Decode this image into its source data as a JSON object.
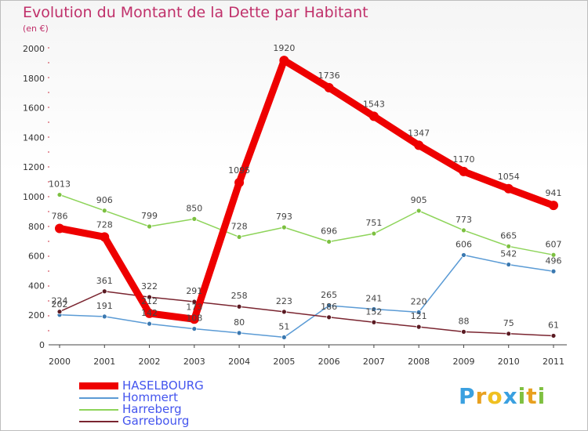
{
  "title": "Evolution du Montant de la Dette par Habitant",
  "subtitle": "(en €)",
  "logo": {
    "text": "Proxiti",
    "letter_colors": [
      "#3aa0e0",
      "#e8a020",
      "#f0c020",
      "#3aa0e0",
      "#7fc040",
      "#e8a020",
      "#7fc040"
    ]
  },
  "chart_data": {
    "type": "line",
    "title": "Evolution du Montant de la Dette par Habitant",
    "subtitle": "(en €)",
    "x": [
      "2000",
      "2001",
      "2002",
      "2003",
      "2004",
      "2005",
      "2006",
      "2007",
      "2008",
      "2009",
      "2010",
      "2011"
    ],
    "ylim": [
      0,
      2000
    ],
    "yticks": [
      "0",
      "200",
      "400",
      "600",
      "800",
      "1000",
      "1200",
      "1400",
      "1600",
      "1800",
      "2000"
    ],
    "grid": false,
    "legend_position": "bottom-left",
    "series": [
      {
        "name": "HASELBOURG",
        "color": "#ee0000",
        "values": [
          786,
          728,
          212,
          173,
          1095,
          1920,
          1736,
          1543,
          1347,
          1170,
          1054,
          941
        ],
        "labels": [
          "786",
          "728",
          "212",
          "173",
          "1095",
          "1920",
          "1736",
          "1543",
          "1347",
          "1170",
          "1054",
          "941"
        ]
      },
      {
        "name": "Hommert",
        "color": "#5b9bd5",
        "values": [
          202,
          191,
          142,
          108,
          80,
          51,
          265,
          241,
          220,
          606,
          542,
          496
        ],
        "labels": [
          "202",
          "191",
          "142",
          "108",
          "80",
          "51",
          "265",
          "241",
          "220",
          "606",
          "542",
          "496"
        ]
      },
      {
        "name": "Harreberg",
        "color": "#8ed45a",
        "values": [
          1013,
          906,
          799,
          850,
          728,
          793,
          696,
          751,
          905,
          773,
          665,
          607
        ],
        "labels": [
          "1013",
          "906",
          "799",
          "850",
          "728",
          "793",
          "696",
          "751",
          "905",
          "773",
          "665",
          "607"
        ]
      },
      {
        "name": "Garrebourg",
        "color": "#7a2530",
        "values": [
          224,
          361,
          322,
          291,
          258,
          223,
          186,
          152,
          121,
          88,
          75,
          61
        ],
        "labels": [
          "224",
          "361",
          "322",
          "291",
          "258",
          "223",
          "186",
          "152",
          "121",
          "88",
          "75",
          "61"
        ]
      }
    ]
  }
}
